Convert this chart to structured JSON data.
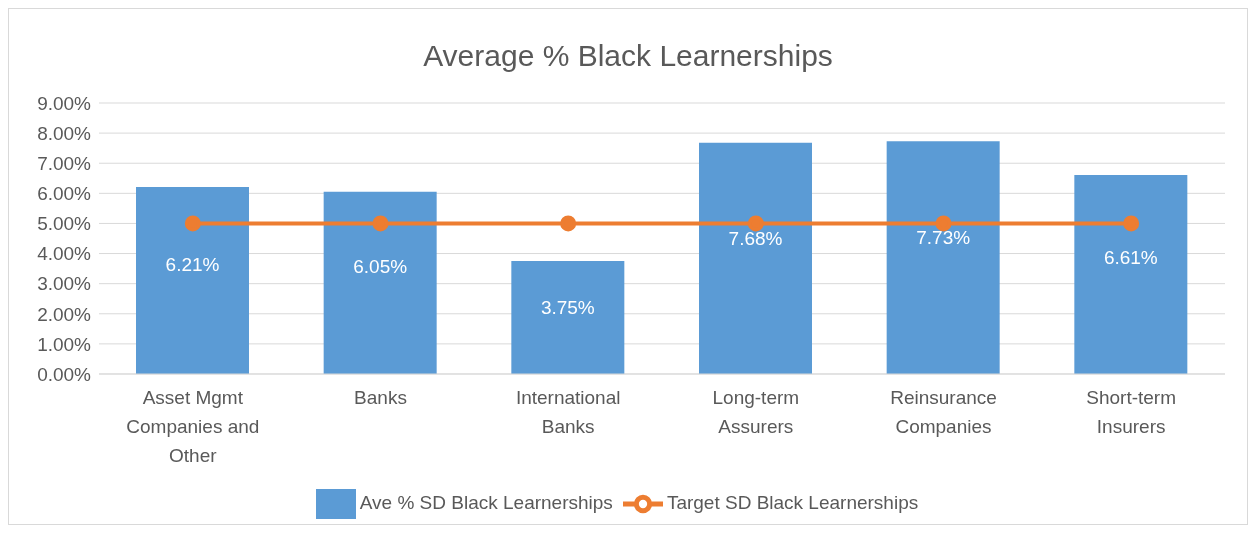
{
  "chart_data": {
    "type": "bar",
    "title": "Average % Black Learnerships",
    "categories": [
      "Asset Mgmt Companies and Other",
      "Banks",
      "International Banks",
      "Long-term Assurers",
      "Reinsurance Companies",
      "Short-term Insurers"
    ],
    "series": [
      {
        "name": "Ave % SD Black Learnerships",
        "color": "#5b9bd5",
        "values": [
          6.21,
          6.05,
          3.75,
          7.68,
          7.73,
          6.61
        ],
        "value_labels": [
          "6.21%",
          "6.05%",
          "3.75%",
          "7.68%",
          "7.73%",
          "6.61%"
        ]
      },
      {
        "name": "Target SD Black Learnerships",
        "type": "line",
        "color": "#ed7d31",
        "values": [
          5,
          5,
          5,
          5,
          5,
          5
        ]
      }
    ],
    "ylim": [
      0,
      9
    ],
    "yticks": [
      {
        "value": 0,
        "label": "0.00%"
      },
      {
        "value": 1,
        "label": "1.00%"
      },
      {
        "value": 2,
        "label": "2.00%"
      },
      {
        "value": 3,
        "label": "3.00%"
      },
      {
        "value": 4,
        "label": "4.00%"
      },
      {
        "value": 5,
        "label": "5.00%"
      },
      {
        "value": 6,
        "label": "6.00%"
      },
      {
        "value": 7,
        "label": "7.00%"
      },
      {
        "value": 8,
        "label": "8.00%"
      },
      {
        "value": 9,
        "label": "9.00%"
      }
    ],
    "grid": "y",
    "legend": "bottom",
    "marker": "circle",
    "line_style": "solid"
  }
}
